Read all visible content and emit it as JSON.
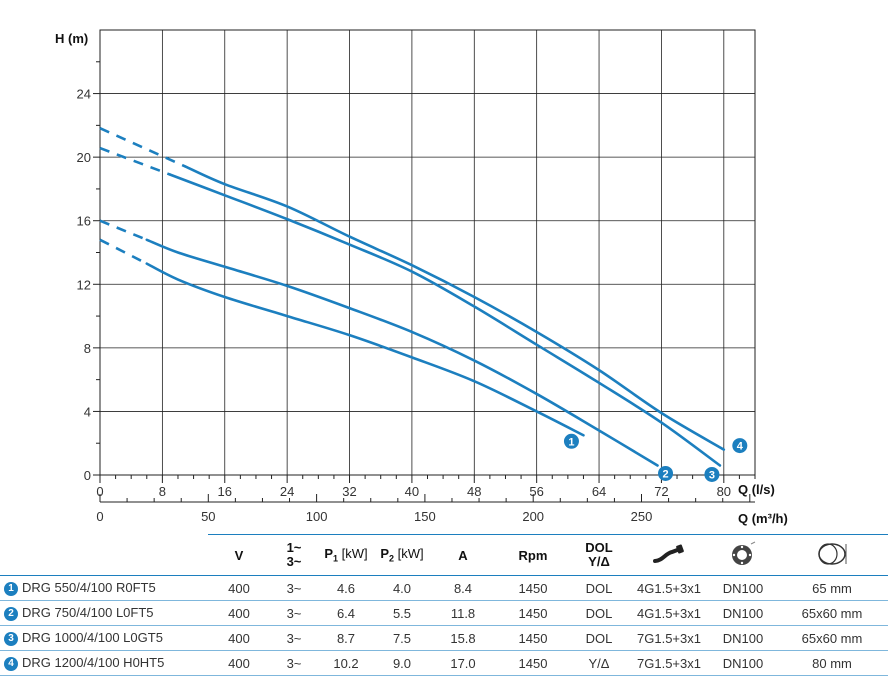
{
  "chart_data": {
    "type": "line",
    "xlabel": "Q (l/s)",
    "x2label": "Q (m³/h)",
    "ylabel": "H (m)",
    "xlim": [
      0,
      84
    ],
    "ylim": [
      0,
      28
    ],
    "x_ticks": [
      0,
      8,
      16,
      24,
      32,
      40,
      48,
      56,
      64,
      72,
      80
    ],
    "y_ticks": [
      0,
      4,
      8,
      12,
      16,
      20,
      24
    ],
    "x2_ticks": [
      0,
      50,
      100,
      150,
      200,
      250
    ],
    "grid": true,
    "series": [
      {
        "label": "1",
        "dashed_x": [
          0,
          6
        ],
        "x": [
          6,
          10,
          16,
          24,
          32,
          40,
          48,
          56,
          62
        ],
        "y": [
          13.3,
          12.3,
          11.2,
          10.0,
          8.8,
          7.4,
          5.9,
          4.0,
          2.5
        ]
      },
      {
        "label": "2",
        "dashed_x": [
          0,
          6
        ],
        "x": [
          6,
          10,
          16,
          24,
          32,
          40,
          48,
          56,
          64,
          71.5
        ],
        "y": [
          14.8,
          14.0,
          13.1,
          11.9,
          10.5,
          9.0,
          7.2,
          5.1,
          2.8,
          0.6
        ]
      },
      {
        "label": "3",
        "dashed_x": [
          0,
          9
        ],
        "x": [
          9,
          16,
          24,
          32,
          40,
          48,
          56,
          64,
          72,
          79.5
        ],
        "y": [
          18.9,
          17.6,
          16.1,
          14.5,
          12.8,
          10.6,
          8.2,
          5.8,
          3.3,
          0.6
        ]
      },
      {
        "label": "4",
        "dashed_x": [
          0,
          11
        ],
        "x": [
          11,
          16,
          24,
          32,
          40,
          48,
          56,
          64,
          72,
          80
        ],
        "y": [
          19.4,
          18.3,
          16.9,
          15.0,
          13.2,
          11.2,
          9.0,
          6.6,
          3.9,
          1.6
        ]
      }
    ],
    "colors": {
      "curve": "#1c7fbf",
      "grid": "#222222",
      "badge": "#1c7fbf"
    }
  },
  "table": {
    "headers": {
      "v": "V",
      "phase_top": "1~",
      "phase_bottom": "3~",
      "p1": "P",
      "p1_sub": "1",
      "p1_unit": "[kW]",
      "p2": "P",
      "p2_sub": "2",
      "p2_unit": "[kW]",
      "a": "A",
      "rpm": "Rpm",
      "start_top": "DOL",
      "start_bottom": "Y/Δ"
    },
    "icons": [
      "cable-icon",
      "flange-icon",
      "passage-icon"
    ],
    "rows": [
      {
        "num": "1",
        "model": "DRG 550/4/100 R0FT5",
        "v": "400",
        "phase": "3~",
        "p1": "4.6",
        "p2": "4.0",
        "a": "8.4",
        "rpm": "1450",
        "start": "DOL",
        "cable": "4G1.5+3x1",
        "flange": "DN100",
        "passage": "65 mm"
      },
      {
        "num": "2",
        "model": "DRG 750/4/100 L0FT5",
        "v": "400",
        "phase": "3~",
        "p1": "6.4",
        "p2": "5.5",
        "a": "11.8",
        "rpm": "1450",
        "start": "DOL",
        "cable": "4G1.5+3x1",
        "flange": "DN100",
        "passage": "65x60 mm"
      },
      {
        "num": "3",
        "model": "DRG 1000/4/100 L0GT5",
        "v": "400",
        "phase": "3~",
        "p1": "8.7",
        "p2": "7.5",
        "a": "15.8",
        "rpm": "1450",
        "start": "DOL",
        "cable": "7G1.5+3x1",
        "flange": "DN100",
        "passage": "65x60 mm"
      },
      {
        "num": "4",
        "model": "DRG 1200/4/100 H0HT5",
        "v": "400",
        "phase": "3~",
        "p1": "10.2",
        "p2": "9.0",
        "a": "17.0",
        "rpm": "1450",
        "start": "Y/Δ",
        "cable": "7G1.5+3x1",
        "flange": "DN100",
        "passage": "80 mm"
      }
    ]
  }
}
